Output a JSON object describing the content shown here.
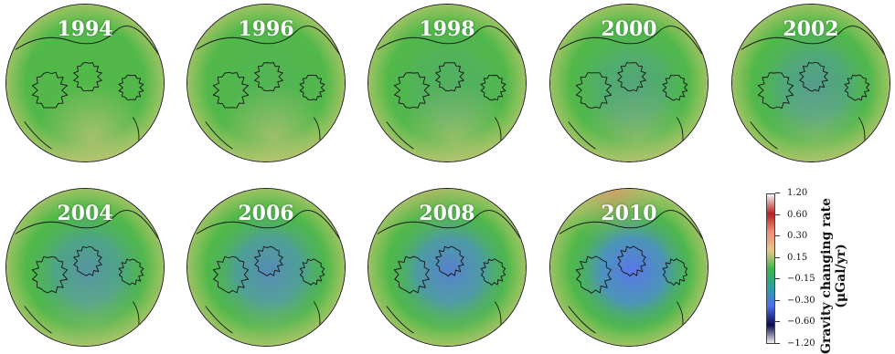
{
  "panels": [
    {
      "year": "1994",
      "intensity": 0.0
    },
    {
      "year": "1996",
      "intensity": 0.06
    },
    {
      "year": "1998",
      "intensity": 0.15
    },
    {
      "year": "2000",
      "intensity": 0.3
    },
    {
      "year": "2002",
      "intensity": 0.42
    },
    {
      "year": "2004",
      "intensity": 0.55
    },
    {
      "year": "2006",
      "intensity": 0.68
    },
    {
      "year": "2008",
      "intensity": 0.82
    },
    {
      "year": "2010",
      "intensity": 1.0
    }
  ],
  "colorbar": {
    "title_line1": "Gravity changing rate",
    "title_line2": "(μGal/yr)",
    "ticks": [
      "1.20",
      "0.60",
      "0.30",
      "0.15",
      "−0.15",
      "−0.30",
      "−0.60",
      "−1.20"
    ],
    "colors": [
      "#f4f4f4",
      "#b22222",
      "#f08a7a",
      "#e8c889",
      "#3cb54a",
      "#2aa0a0",
      "#4f6ef0",
      "#0a0a4a",
      "#f0f0f0"
    ]
  }
}
